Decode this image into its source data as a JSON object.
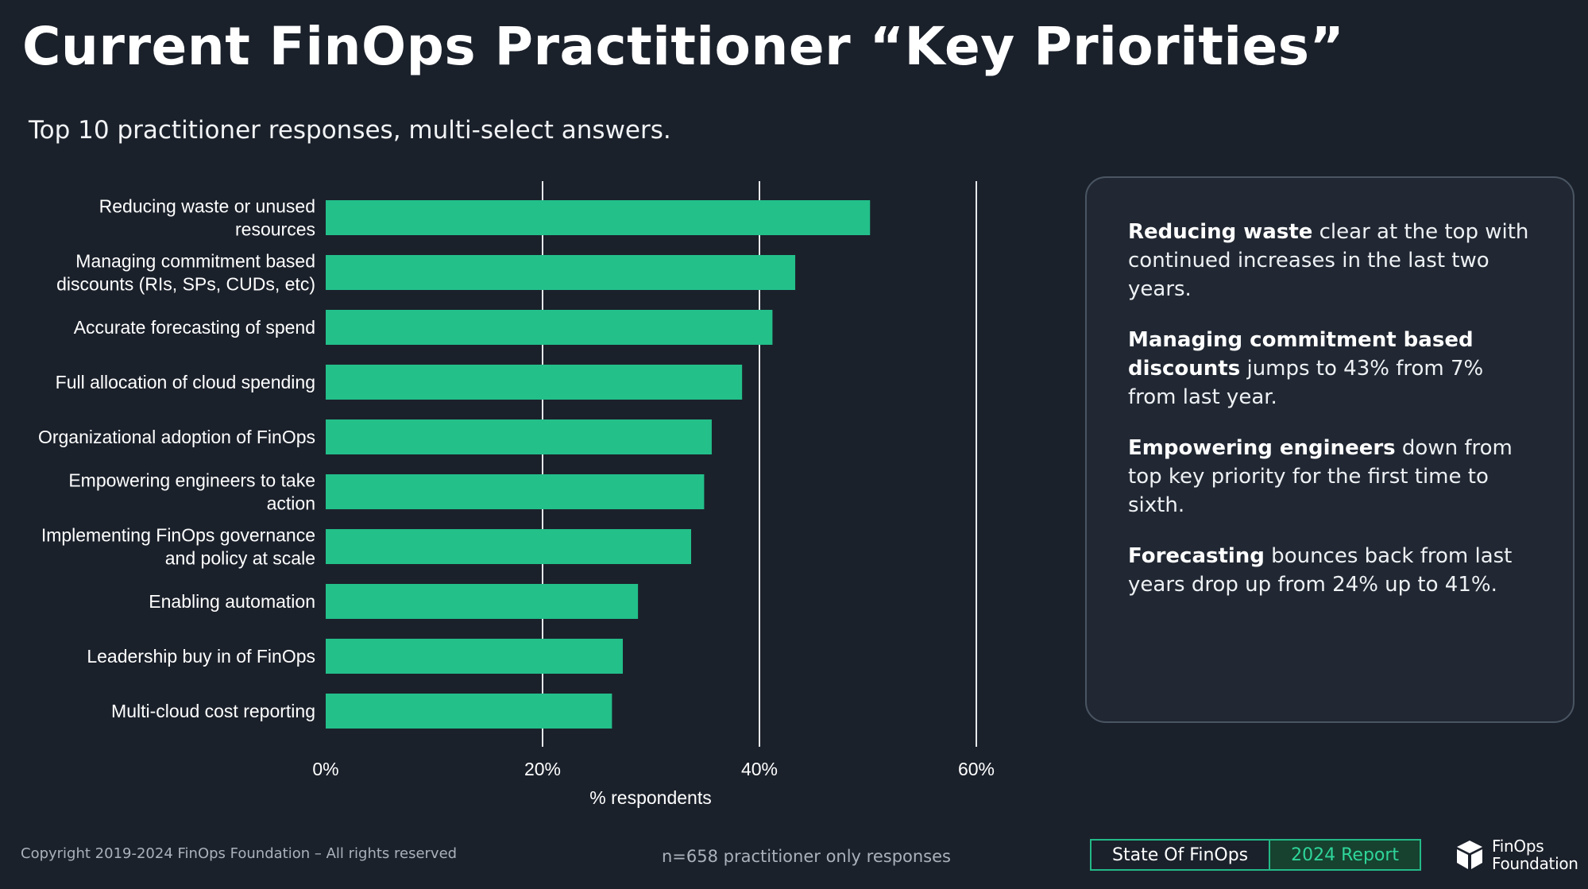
{
  "title": "Current FinOps Practitioner “Key Priorities”",
  "subtitle": "Top 10 practitioner responses, multi-select answers.",
  "chart_data": {
    "type": "bar",
    "orientation": "horizontal",
    "categories": [
      [
        "Reducing waste or unused",
        "resources"
      ],
      [
        "Managing commitment based",
        "discounts (RIs, SPs, CUDs, etc)"
      ],
      [
        "Accurate forecasting of spend"
      ],
      [
        "Full allocation of cloud spending"
      ],
      [
        "Organizational adoption of FinOps"
      ],
      [
        "Empowering engineers to take",
        "action"
      ],
      [
        "Implementing FinOps governance",
        "and policy at scale"
      ],
      [
        "Enabling automation"
      ],
      [
        "Leadership buy in of FinOps"
      ],
      [
        "Multi-cloud cost reporting"
      ]
    ],
    "values": [
      50.2,
      43.3,
      41.2,
      38.4,
      35.6,
      34.9,
      33.7,
      28.8,
      27.4,
      26.4
    ],
    "xlim": [
      0,
      60
    ],
    "xticks": [
      "0%",
      "20%",
      "40%",
      "60%"
    ],
    "xlabel": "% respondents",
    "bar_color": "#23c08a",
    "grid": true
  },
  "insights": [
    {
      "bold": "Reducing waste",
      "text": " clear at the top with continued increases in the last two years."
    },
    {
      "bold": "Managing commitment based discounts",
      "text": " jumps to 43% from 7% from last year."
    },
    {
      "bold": "Empowering engineers",
      "text": " down from top key priority for the first time to sixth."
    },
    {
      "bold": "Forecasting",
      "text": " bounces back from last years drop up from 24% up to 41%."
    }
  ],
  "footer": {
    "copyright": "Copyright 2019-2024 FinOps Foundation – All rights reserved",
    "n_note": "n=658  practitioner only responses",
    "badge_left": "State Of FinOps",
    "badge_right": "2024 Report",
    "brand": "FinOps\nFoundation",
    "brand_icon": "cube-icon"
  }
}
